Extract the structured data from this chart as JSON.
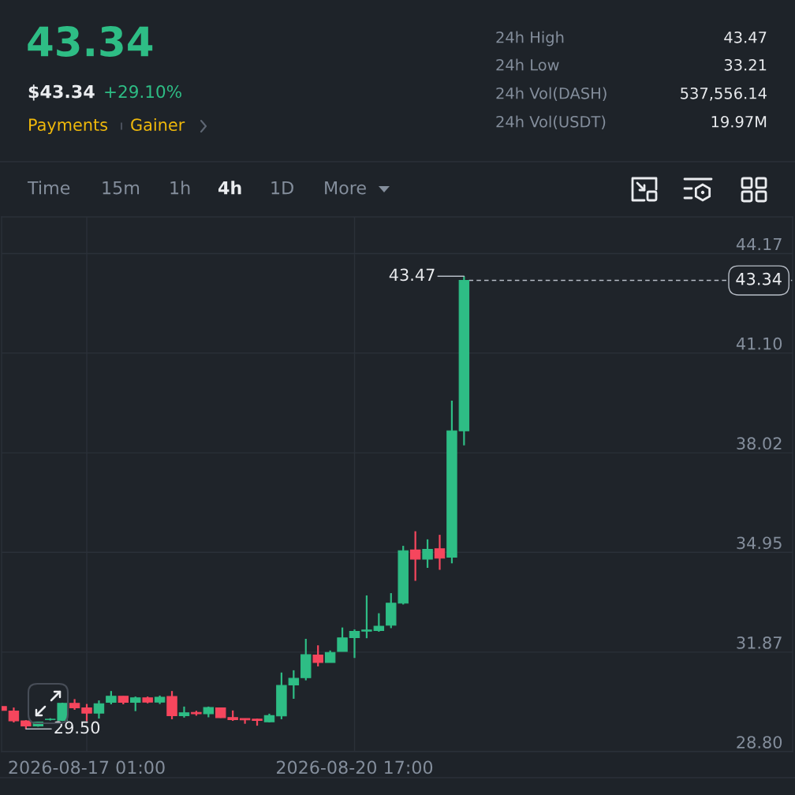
{
  "chart_data": {
    "type": "candlestick",
    "title": "43.34",
    "x": [
      "2026-08-15T21:00",
      "2026-08-16T01:00",
      "2026-08-16T05:00",
      "2026-08-16T09:00",
      "2026-08-16T13:00",
      "2026-08-16T17:00",
      "2026-08-16T21:00",
      "2026-08-17T01:00",
      "2026-08-17T05:00",
      "2026-08-17T09:00",
      "2026-08-17T13:00",
      "2026-08-17T17:00",
      "2026-08-17T21:00",
      "2026-08-18T01:00",
      "2026-08-18T05:00",
      "2026-08-18T09:00",
      "2026-08-18T13:00",
      "2026-08-18T17:00",
      "2026-08-18T21:00",
      "2026-08-19T01:00",
      "2026-08-19T05:00",
      "2026-08-19T09:00",
      "2026-08-19T13:00",
      "2026-08-19T17:00",
      "2026-08-19T21:00",
      "2026-08-20T01:00",
      "2026-08-20T05:00",
      "2026-08-20T09:00",
      "2026-08-20T13:00",
      "2026-08-20T17:00",
      "2026-08-20T21:00",
      "2026-08-21T01:00",
      "2026-08-21T05:00",
      "2026-08-21T09:00",
      "2026-08-21T13:00",
      "2026-08-21T17:00",
      "2026-08-21T21:00",
      "2026-08-22T01:00",
      "2026-08-22T05:00"
    ],
    "ohlc": [
      [
        30.19,
        30.19,
        30.07,
        30.07
      ],
      [
        30.05,
        30.16,
        29.7,
        29.75
      ],
      [
        29.75,
        29.77,
        29.5,
        29.59
      ],
      [
        29.59,
        29.72,
        29.57,
        29.71
      ],
      [
        29.79,
        29.83,
        29.76,
        29.8
      ],
      [
        29.76,
        30.31,
        29.74,
        30.29
      ],
      [
        30.29,
        30.42,
        30.09,
        30.15
      ],
      [
        30.15,
        30.27,
        29.74,
        29.99
      ],
      [
        29.99,
        30.38,
        29.82,
        30.28
      ],
      [
        30.32,
        30.67,
        30.26,
        30.51
      ],
      [
        30.51,
        30.51,
        30.26,
        30.32
      ],
      [
        30.32,
        30.5,
        30.05,
        30.46
      ],
      [
        30.46,
        30.5,
        30.29,
        30.33
      ],
      [
        30.33,
        30.53,
        30.27,
        30.48
      ],
      [
        30.5,
        30.67,
        29.8,
        29.91
      ],
      [
        29.91,
        30.19,
        29.85,
        30.0
      ],
      [
        30.01,
        30.06,
        29.91,
        29.97
      ],
      [
        29.97,
        30.19,
        29.86,
        30.16
      ],
      [
        30.15,
        30.16,
        29.84,
        29.85
      ],
      [
        29.85,
        30.07,
        29.75,
        29.79
      ],
      [
        29.82,
        29.82,
        29.66,
        29.78
      ],
      [
        29.8,
        29.82,
        29.6,
        29.76
      ],
      [
        29.72,
        29.97,
        29.7,
        29.91
      ],
      [
        29.9,
        31.24,
        29.8,
        30.84
      ],
      [
        30.86,
        31.31,
        30.43,
        31.06
      ],
      [
        31.08,
        32.28,
        31.0,
        31.79
      ],
      [
        31.78,
        32.08,
        31.43,
        31.55
      ],
      [
        31.55,
        31.92,
        31.55,
        31.86
      ],
      [
        31.89,
        32.63,
        31.89,
        32.31
      ],
      [
        32.32,
        32.57,
        31.69,
        32.51
      ],
      [
        32.52,
        33.62,
        32.3,
        32.55
      ],
      [
        32.54,
        33.07,
        32.5,
        32.67
      ],
      [
        32.7,
        33.69,
        32.61,
        33.38
      ],
      [
        33.38,
        35.15,
        33.34,
        35.0
      ],
      [
        35.02,
        35.6,
        34.07,
        34.74
      ],
      [
        34.74,
        35.35,
        34.47,
        35.04
      ],
      [
        35.06,
        35.49,
        34.41,
        34.77
      ],
      [
        34.8,
        39.63,
        34.61,
        38.7
      ],
      [
        38.7,
        43.47,
        38.25,
        43.34
      ]
    ],
    "colors": [
      "#f6465d",
      "#f6465d",
      "#f6465d",
      "#2ebd85",
      "#2ebd85",
      "#2ebd85",
      "#f6465d",
      "#f6465d",
      "#2ebd85",
      "#2ebd85",
      "#f6465d",
      "#2ebd85",
      "#f6465d",
      "#2ebd85",
      "#f6465d",
      "#2ebd85",
      "#f6465d",
      "#2ebd85",
      "#f6465d",
      "#f6465d",
      "#f6465d",
      "#f6465d",
      "#2ebd85",
      "#2ebd85",
      "#2ebd85",
      "#2ebd85",
      "#f6465d",
      "#2ebd85",
      "#2ebd85",
      "#2ebd85",
      "#2ebd85",
      "#2ebd85",
      "#2ebd85",
      "#2ebd85",
      "#f6465d",
      "#2ebd85",
      "#f6465d",
      "#2ebd85",
      "#2ebd85"
    ],
    "xlim": [
      "2026-08-15T21:00",
      "2026-08-26T17:00"
    ],
    "xticks": [
      {
        "value": "2026-08-17T01:00",
        "label": "2026-08-17 01:00"
      },
      {
        "value": "2026-08-20T17:00",
        "label": "2026-08-20 17:00"
      }
    ],
    "ylim": [
      28.8,
      45.3
    ],
    "yticks": [
      44.17,
      {
        "value": 41.1,
        "label": "41.10"
      },
      38.02,
      34.95,
      31.87,
      {
        "value": 28.8,
        "label": "28.80"
      }
    ],
    "grid": true,
    "ref_lines": [
      {
        "axis": "y",
        "value": 43.34,
        "label": "43.34",
        "line_style": "dashed",
        "color": "#b7bdc6"
      }
    ],
    "annotations": [
      "$43.34",
      "+29.10%",
      "Payments",
      "Gainer",
      "24h High",
      "43.47",
      "24h Low",
      "33.21",
      "24h Vol(DASH)",
      "537,556.14",
      "24h Vol(USDT)",
      "19.97M",
      "Time",
      "15m",
      "1h",
      "4h",
      "1D",
      "More",
      {
        "text": "43.47",
        "x": "2026-08-22T05:00",
        "y": 43.47
      },
      {
        "text": "29.50",
        "x": "2026-08-16T05:00",
        "y": 29.5
      }
    ]
  }
}
